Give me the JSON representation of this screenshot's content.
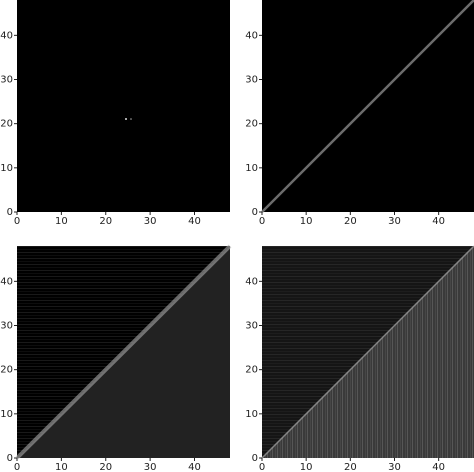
{
  "chart_data": [
    {
      "type": "heatmap",
      "xlim": [
        0,
        48
      ],
      "ylim": [
        0,
        48
      ],
      "xticks": [
        0,
        10,
        20,
        30,
        40
      ],
      "yticks": [
        0,
        10,
        20,
        30,
        40
      ]
    },
    {
      "type": "heatmap",
      "xlim": [
        0,
        48
      ],
      "ylim": [
        0,
        48
      ],
      "xticks": [
        0,
        10,
        20,
        30,
        40
      ],
      "yticks": [
        0,
        10,
        20,
        30,
        40
      ]
    },
    {
      "type": "heatmap",
      "xlim": [
        0,
        48
      ],
      "ylim": [
        0,
        48
      ],
      "xticks": [
        0,
        10,
        20,
        30,
        40
      ],
      "yticks": [
        0,
        10,
        20,
        30,
        40
      ]
    },
    {
      "type": "heatmap",
      "xlim": [
        0,
        48
      ],
      "ylim": [
        0,
        48
      ],
      "xticks": [
        0,
        10,
        20,
        30,
        40
      ],
      "yticks": [
        0,
        10,
        20,
        30,
        40
      ]
    }
  ]
}
